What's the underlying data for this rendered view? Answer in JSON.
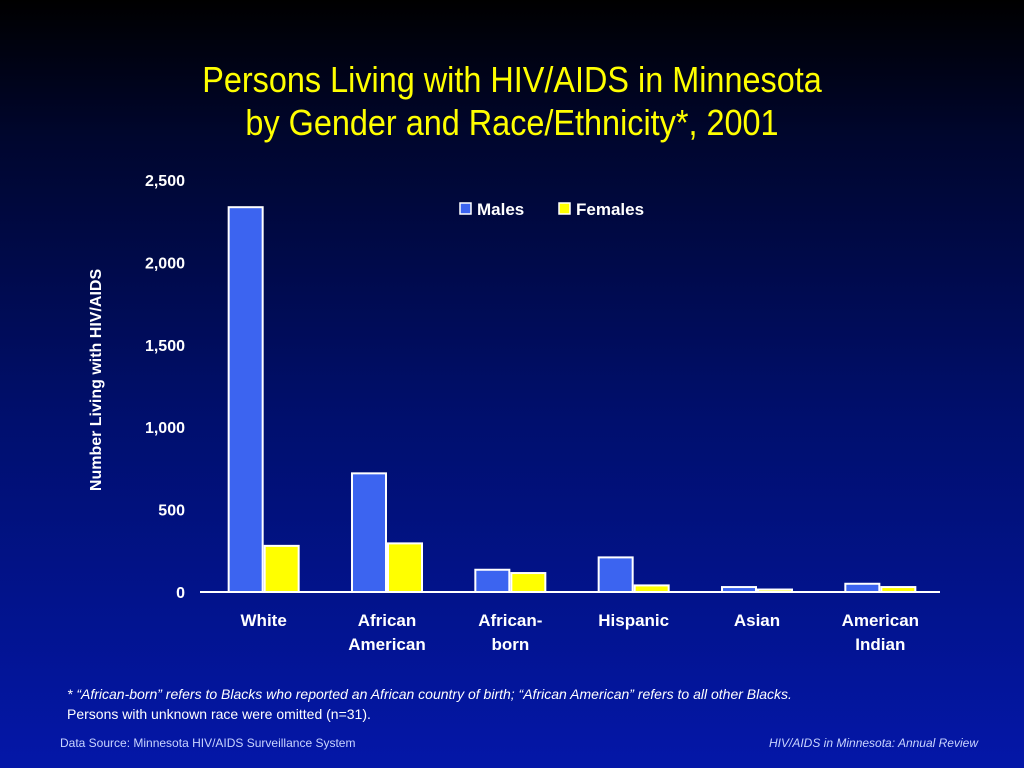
{
  "title": {
    "line1": "Persons Living with HIV/AIDS in Minnesota",
    "line2": "by Gender and Race/Ethnicity*, 2001"
  },
  "chart_data": {
    "type": "bar",
    "title": "Persons Living with HIV/AIDS in Minnesota by Gender and Race/Ethnicity*, 2001",
    "xlabel": "",
    "ylabel": "Number Living with HIV/AIDS",
    "ylim": [
      0,
      2500
    ],
    "yticks": [
      0,
      500,
      1000,
      1500,
      2000,
      2500
    ],
    "ytick_labels": [
      "0",
      "500",
      "1,000",
      "1,500",
      "2,000",
      "2,500"
    ],
    "categories": [
      [
        "White"
      ],
      [
        "African",
        "American"
      ],
      [
        "African-",
        "born"
      ],
      [
        "Hispanic"
      ],
      [
        "Asian"
      ],
      [
        "American",
        "Indian"
      ]
    ],
    "series": [
      {
        "name": "Males",
        "color": "#3c64f0",
        "values": [
          2335,
          720,
          135,
          210,
          30,
          50
        ]
      },
      {
        "name": "Females",
        "color": "#ffff00",
        "values": [
          280,
          295,
          115,
          40,
          15,
          30
        ]
      }
    ],
    "grid": false,
    "legend_position": "top-right"
  },
  "footnote": {
    "line1": "*  “African-born” refers to Blacks who reported an African country of birth; “African American” refers to all other Blacks.",
    "line2": "Persons with unknown race were omitted (n=31)."
  },
  "source": {
    "left": "Data Source:  Minnesota HIV/AIDS Surveillance System",
    "right": "HIV/AIDS in Minnesota: Annual Review"
  }
}
